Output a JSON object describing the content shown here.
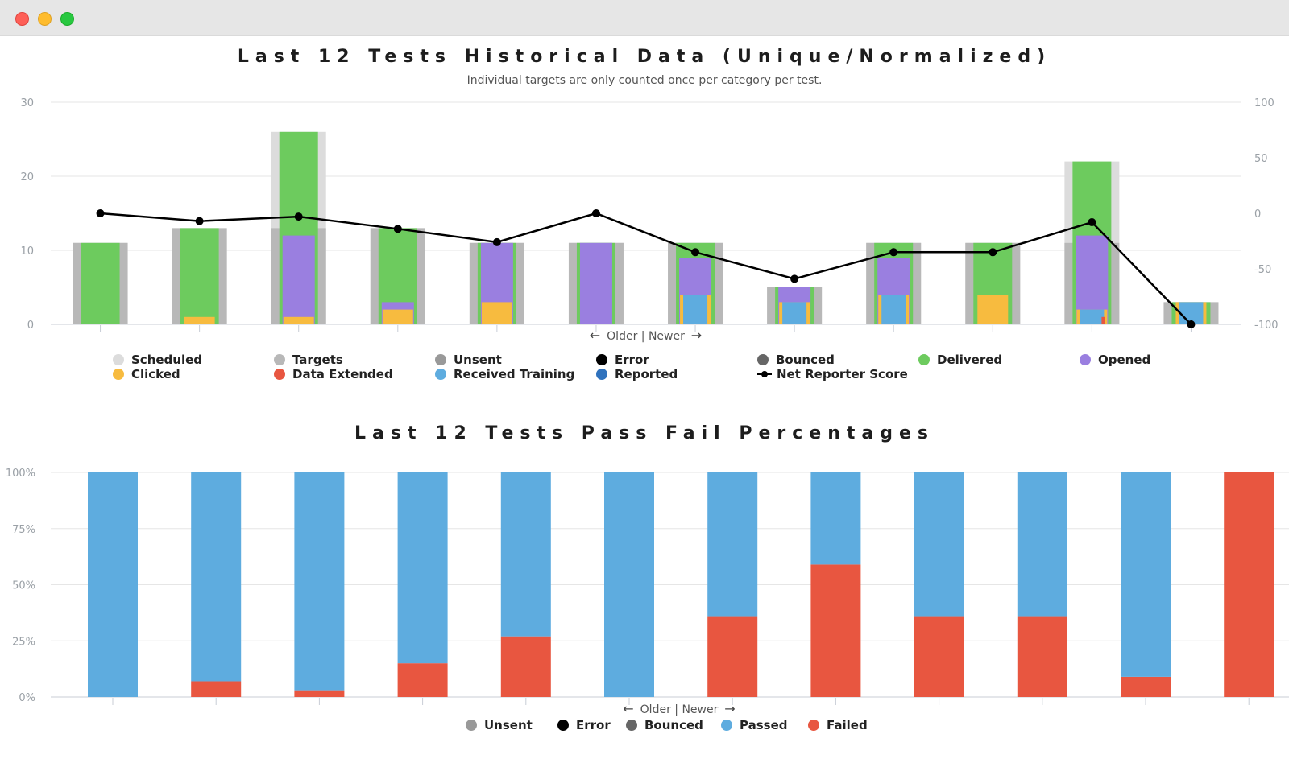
{
  "window": {
    "controls": [
      "close",
      "minimize",
      "maximize"
    ]
  },
  "chart1": {
    "title": "Last 12 Tests Historical Data (Unique/Normalized)",
    "subtitle": "Individual targets are only counted once per category per test.",
    "nav_label": "Older | Newer",
    "nav_left_icon": "arrow-left-icon",
    "nav_right_icon": "arrow-right-icon",
    "legend": [
      {
        "label": "Scheduled",
        "color": "#dcdcdc",
        "kind": "dot"
      },
      {
        "label": "Targets",
        "color": "#b8b8b8",
        "kind": "dot"
      },
      {
        "label": "Unsent",
        "color": "#999999",
        "kind": "dot"
      },
      {
        "label": "Error",
        "color": "#000000",
        "kind": "dot"
      },
      {
        "label": "Bounced",
        "color": "#666666",
        "kind": "dot"
      },
      {
        "label": "Delivered",
        "color": "#6dcb5e",
        "kind": "dot"
      },
      {
        "label": "Opened",
        "color": "#9a7fe0",
        "kind": "dot"
      },
      {
        "label": "Clicked",
        "color": "#f7bb3f",
        "kind": "dot"
      },
      {
        "label": "Data Extended",
        "color": "#e85640",
        "kind": "dot"
      },
      {
        "label": "Received Training",
        "color": "#5eacdf",
        "kind": "dot"
      },
      {
        "label": "Reported",
        "color": "#2f72bd",
        "kind": "dot"
      },
      {
        "label": "Net Reporter Score",
        "color": "#000000",
        "kind": "line"
      }
    ]
  },
  "chart2": {
    "title": "Last 12 Tests Pass Fail Percentages",
    "nav_label": "Older | Newer",
    "nav_left_icon": "arrow-left-icon",
    "nav_right_icon": "arrow-right-icon",
    "legend": [
      {
        "label": "Unsent",
        "color": "#999999"
      },
      {
        "label": "Error",
        "color": "#000000"
      },
      {
        "label": "Bounced",
        "color": "#666666"
      },
      {
        "label": "Passed",
        "color": "#5eacdf"
      },
      {
        "label": "Failed",
        "color": "#e85640"
      }
    ]
  },
  "chart_data": [
    {
      "type": "bar",
      "title": "Last 12 Tests Historical Data (Unique/Normalized)",
      "subtitle": "Individual targets are only counted once per category per test.",
      "xlabel": "Older | Newer",
      "ylim": [
        0,
        30
      ],
      "yticks": [
        0,
        10,
        20,
        30
      ],
      "y2lim": [
        -100,
        100
      ],
      "y2ticks": [
        -100,
        -50,
        0,
        50,
        100
      ],
      "grid": true,
      "legend_position": "bottom",
      "colors": {
        "Scheduled": "#dcdcdc",
        "Targets": "#b8b8b8",
        "Delivered": "#6dcb5e",
        "Opened": "#9a7fe0",
        "Clicked": "#f7bb3f",
        "Data Extended": "#e85640",
        "Received Training": "#5eacdf",
        "Net Reporter Score": "#000000"
      },
      "series": [
        {
          "name": "Scheduled",
          "values": [
            11,
            13,
            26,
            13,
            11,
            11,
            11,
            5,
            11,
            11,
            22,
            3
          ]
        },
        {
          "name": "Targets",
          "values": [
            11,
            13,
            13,
            13,
            11,
            11,
            11,
            5,
            11,
            11,
            11,
            3
          ]
        },
        {
          "name": "Delivered",
          "values": [
            11,
            13,
            26,
            13,
            11,
            11,
            11,
            5,
            11,
            11,
            22,
            3
          ]
        },
        {
          "name": "Opened",
          "values": [
            0,
            0,
            12,
            3,
            11,
            11,
            9,
            5,
            9,
            0,
            12,
            0
          ]
        },
        {
          "name": "Clicked",
          "values": [
            0,
            1,
            1,
            2,
            3,
            0,
            4,
            3,
            4,
            4,
            2,
            3
          ]
        },
        {
          "name": "Data Extended",
          "values": [
            0,
            0,
            0,
            0,
            0,
            0,
            0,
            0,
            0,
            0,
            1,
            0
          ]
        },
        {
          "name": "Received Training",
          "values": [
            0,
            0,
            0,
            0,
            0,
            0,
            4,
            3,
            4,
            0,
            2,
            3
          ]
        },
        {
          "name": "Net Reporter Score",
          "axis": "right",
          "type": "line",
          "values": [
            0,
            -7,
            -3,
            -14,
            -26,
            0,
            -35,
            -59,
            -35,
            -35,
            -8,
            -100
          ]
        }
      ]
    },
    {
      "type": "bar",
      "title": "Last 12 Tests Pass Fail Percentages",
      "xlabel": "Older | Newer",
      "ylim": [
        0,
        100
      ],
      "yticks": [
        "0%",
        "25%",
        "50%",
        "75%",
        "100%"
      ],
      "grid": true,
      "legend_position": "bottom",
      "series": [
        {
          "name": "Failed",
          "color": "#e85640",
          "values": [
            0,
            7,
            3,
            15,
            27,
            0,
            36,
            59,
            36,
            36,
            9,
            100
          ]
        },
        {
          "name": "Passed",
          "color": "#5eacdf",
          "values": [
            100,
            93,
            97,
            85,
            73,
            100,
            64,
            41,
            64,
            64,
            91,
            0
          ]
        }
      ]
    }
  ]
}
